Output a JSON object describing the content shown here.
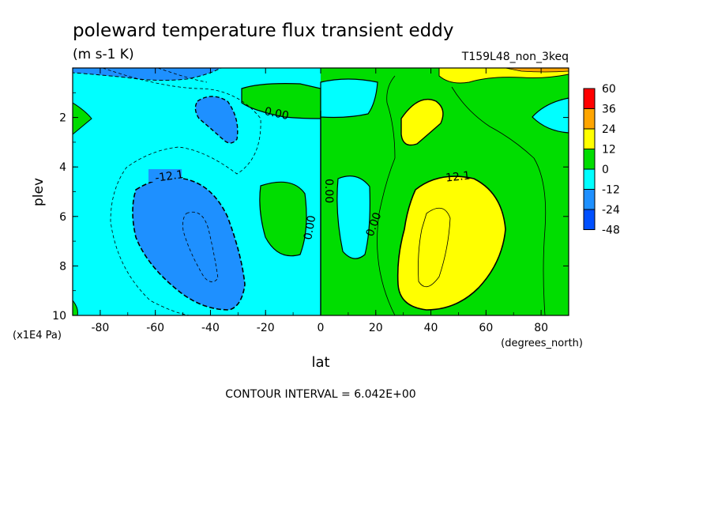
{
  "chart_data": {
    "type": "contour",
    "title": "poleward temperature flux transient eddy",
    "units": "(m s-1 K)",
    "experiment": "T159L48_non_3keq",
    "xlabel": "lat",
    "x_units": "(degrees_north)",
    "ylabel": "plev",
    "y_units": "(x1E4 Pa)",
    "xlim": [
      -90,
      90
    ],
    "ylim": [
      10,
      0
    ],
    "x_ticks": [
      "-80",
      "-60",
      "-40",
      "-20",
      "0",
      "20",
      "40",
      "60",
      "80"
    ],
    "y_ticks": [
      "2",
      "4",
      "6",
      "8",
      "10"
    ],
    "contour_interval_label": "CONTOUR INTERVAL = 6.042E+00",
    "contour_labels": [
      "-12.1",
      "0.00",
      "0.00",
      "0.00",
      "0.00",
      "12.1"
    ],
    "colorbar": {
      "levels": [
        "60",
        "36",
        "24",
        "12",
        "0",
        "-12",
        "-24",
        "-48"
      ],
      "colors": [
        "#ff0000",
        "#ffa500",
        "#ffff00",
        "#00dd00",
        "#00ffff",
        "#1e90ff",
        "#0050ff"
      ]
    },
    "features": [
      {
        "region": "southern mid-latitude minimum",
        "lat": -45,
        "plev": 7.5,
        "value_approx": -24
      },
      {
        "region": "northern mid-latitude maximum",
        "lat": 45,
        "plev": 7,
        "value_approx": 24
      },
      {
        "region": "southern hemisphere background",
        "value_range": [
          -12,
          0
        ]
      },
      {
        "region": "northern hemisphere background",
        "value_range": [
          0,
          12
        ]
      }
    ]
  }
}
